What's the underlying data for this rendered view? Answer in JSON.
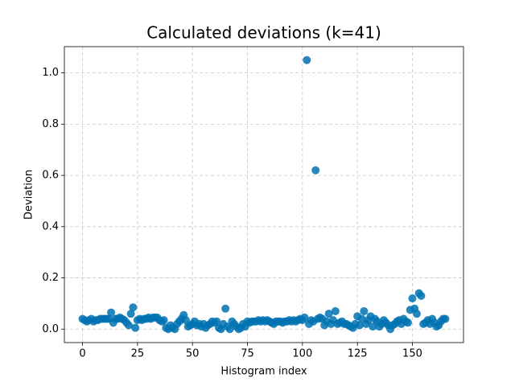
{
  "chart_data": {
    "type": "scatter",
    "title": "Calculated deviations (k=41)",
    "x_label": "Histogram index",
    "y_label": "Deviation",
    "color": "#0072b2",
    "grid": true,
    "xlim": [
      -8.25,
      173.25
    ],
    "ylim": [
      -0.0525,
      1.1025
    ],
    "xticks": [
      0,
      25,
      50,
      75,
      100,
      125,
      150
    ],
    "yticks": [
      {
        "value": 0,
        "label": "0.0"
      },
      0.2,
      0.4,
      0.6,
      0.8,
      {
        "value": 1,
        "label": "1.0"
      }
    ],
    "x": [
      0,
      1,
      2,
      3,
      4,
      5,
      6,
      7,
      8,
      9,
      10,
      11,
      12,
      13,
      14,
      15,
      16,
      17,
      18,
      19,
      20,
      21,
      22,
      23,
      24,
      25,
      26,
      27,
      28,
      29,
      30,
      31,
      32,
      33,
      34,
      35,
      36,
      37,
      38,
      39,
      40,
      41,
      42,
      43,
      44,
      45,
      46,
      47,
      48,
      49,
      50,
      51,
      52,
      53,
      54,
      55,
      56,
      57,
      58,
      59,
      60,
      61,
      62,
      63,
      64,
      65,
      66,
      67,
      68,
      69,
      70,
      71,
      72,
      73,
      74,
      75,
      76,
      77,
      78,
      79,
      80,
      81,
      82,
      83,
      84,
      85,
      86,
      87,
      88,
      89,
      90,
      91,
      92,
      93,
      94,
      95,
      96,
      97,
      98,
      99,
      100,
      101,
      102,
      103,
      104,
      105,
      106,
      107,
      108,
      109,
      110,
      111,
      112,
      113,
      114,
      115,
      116,
      117,
      118,
      119,
      120,
      121,
      122,
      123,
      124,
      125,
      126,
      127,
      128,
      129,
      130,
      131,
      132,
      133,
      134,
      135,
      136,
      137,
      138,
      139,
      140,
      141,
      142,
      143,
      144,
      145,
      146,
      147,
      148,
      149,
      150,
      151,
      152,
      153,
      154,
      155,
      156,
      157,
      158,
      159,
      160,
      161,
      162,
      163,
      164,
      165
    ],
    "values": [
      0.04,
      0.035,
      0.03,
      0.035,
      0.04,
      0.03,
      0.035,
      0.035,
      0.04,
      0.04,
      0.04,
      0.04,
      0.04,
      0.065,
      0.025,
      0.04,
      0.04,
      0.045,
      0.04,
      0.035,
      0.025,
      0.015,
      0.06,
      0.085,
      0.005,
      0.035,
      0.04,
      0.035,
      0.04,
      0.04,
      0.045,
      0.04,
      0.045,
      0.045,
      0.045,
      0.035,
      0.03,
      0.035,
      0.005,
      0.0,
      0.015,
      0.005,
      0.0,
      0.02,
      0.03,
      0.04,
      0.055,
      0.035,
      0.01,
      0.015,
      0.02,
      0.03,
      0.015,
      0.02,
      0.01,
      0.02,
      0.005,
      0.015,
      0.02,
      0.03,
      0.025,
      0.03,
      0.005,
      0.0,
      0.02,
      0.08,
      0.01,
      0.0,
      0.03,
      0.02,
      0.01,
      0.0,
      0.005,
      0.02,
      0.01,
      0.03,
      0.025,
      0.03,
      0.03,
      0.03,
      0.035,
      0.03,
      0.035,
      0.03,
      0.035,
      0.03,
      0.025,
      0.02,
      0.03,
      0.03,
      0.03,
      0.025,
      0.03,
      0.03,
      0.035,
      0.03,
      0.035,
      0.03,
      0.035,
      0.04,
      0.035,
      0.045,
      1.05,
      0.02,
      0.035,
      0.03,
      0.62,
      0.04,
      0.045,
      0.04,
      0.015,
      0.03,
      0.06,
      0.02,
      0.035,
      0.07,
      0.02,
      0.025,
      0.03,
      0.02,
      0.02,
      0.015,
      0.01,
      0.005,
      0.02,
      0.05,
      0.015,
      0.04,
      0.07,
      0.02,
      0.035,
      0.05,
      0.01,
      0.04,
      0.03,
      0.01,
      0.02,
      0.035,
      0.025,
      0.015,
      0.0,
      0.015,
      0.02,
      0.03,
      0.035,
      0.02,
      0.04,
      0.03,
      0.025,
      0.075,
      0.12,
      0.08,
      0.06,
      0.14,
      0.13,
      0.02,
      0.025,
      0.035,
      0.02,
      0.04,
      0.025,
      0.01,
      0.015,
      0.03,
      0.04,
      0.04
    ]
  }
}
